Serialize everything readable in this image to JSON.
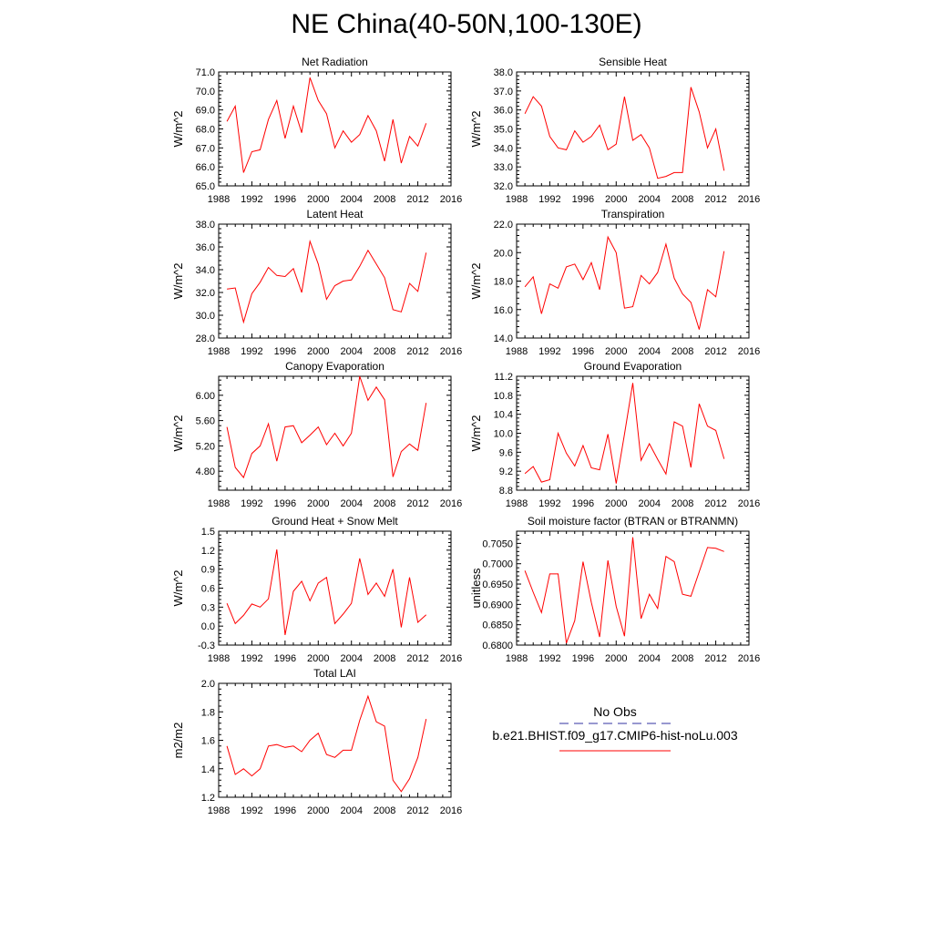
{
  "title": "NE China(40-50N,100-130E)",
  "colors": {
    "series": "#ff0000",
    "obs": "#3030a0",
    "axis": "#000000"
  },
  "legend": {
    "obs_label": "No Obs",
    "model_label": "b.e21.BHIST.f09_g17.CMIP6-hist-noLu.003"
  },
  "chart_data": [
    {
      "type": "line",
      "title": "Net Radiation",
      "ylabel": "W/m^2",
      "xlim": [
        1988,
        2016
      ],
      "ylim": [
        65.0,
        71.0
      ],
      "xticks": [
        "1988",
        "1992",
        "1996",
        "2000",
        "2004",
        "2008",
        "2012",
        "2016"
      ],
      "yticks": [
        "65.0",
        "66.0",
        "67.0",
        "68.0",
        "69.0",
        "70.0",
        "71.0"
      ],
      "ytick_values": [
        65,
        66,
        67,
        68,
        69,
        70,
        71
      ],
      "series": [
        {
          "x": [
            1989,
            1990,
            1991,
            1992,
            1993,
            1994,
            1995,
            1996,
            1997,
            1998,
            1999,
            2000,
            2001,
            2002,
            2003,
            2004,
            2005,
            2006,
            2007,
            2008,
            2009,
            2010,
            2011,
            2012,
            2013
          ],
          "values": [
            68.4,
            69.2,
            65.7,
            66.8,
            66.9,
            68.5,
            69.5,
            67.5,
            69.2,
            67.8,
            70.7,
            69.5,
            68.8,
            67.0,
            67.9,
            67.3,
            67.7,
            68.7,
            67.9,
            66.3,
            68.5,
            66.2,
            67.6,
            67.1,
            68.3
          ]
        }
      ]
    },
    {
      "type": "line",
      "title": "Sensible Heat",
      "ylabel": "W/m^2",
      "xlim": [
        1988,
        2016
      ],
      "ylim": [
        32.0,
        38.0
      ],
      "xticks": [
        "1988",
        "1992",
        "1996",
        "2000",
        "2004",
        "2008",
        "2012",
        "2016"
      ],
      "yticks": [
        "32.0",
        "33.0",
        "34.0",
        "35.0",
        "36.0",
        "37.0",
        "38.0"
      ],
      "ytick_values": [
        32,
        33,
        34,
        35,
        36,
        37,
        38
      ],
      "series": [
        {
          "x": [
            1989,
            1990,
            1991,
            1992,
            1993,
            1994,
            1995,
            1996,
            1997,
            1998,
            1999,
            2000,
            2001,
            2002,
            2003,
            2004,
            2005,
            2006,
            2007,
            2008,
            2009,
            2010,
            2011,
            2012,
            2013
          ],
          "values": [
            35.8,
            36.7,
            36.2,
            34.6,
            34.0,
            33.9,
            34.9,
            34.3,
            34.6,
            35.2,
            33.9,
            34.2,
            36.7,
            34.4,
            34.7,
            34.0,
            32.4,
            32.5,
            32.7,
            32.7,
            37.2,
            35.9,
            34.0,
            35.0,
            32.8
          ]
        }
      ]
    },
    {
      "type": "line",
      "title": "Latent Heat",
      "ylabel": "W/m^2",
      "xlim": [
        1988,
        2016
      ],
      "ylim": [
        28.0,
        38.0
      ],
      "xticks": [
        "1988",
        "1992",
        "1996",
        "2000",
        "2004",
        "2008",
        "2012",
        "2016"
      ],
      "yticks": [
        "28.0",
        "30.0",
        "32.0",
        "34.0",
        "36.0",
        "38.0"
      ],
      "ytick_values": [
        28,
        30,
        32,
        34,
        36,
        38
      ],
      "series": [
        {
          "x": [
            1989,
            1990,
            1991,
            1992,
            1993,
            1994,
            1995,
            1996,
            1997,
            1998,
            1999,
            2000,
            2001,
            2002,
            2003,
            2004,
            2005,
            2006,
            2007,
            2008,
            2009,
            2010,
            2011,
            2012,
            2013
          ],
          "values": [
            32.3,
            32.4,
            29.4,
            31.9,
            32.9,
            34.2,
            33.5,
            33.4,
            34.1,
            32.0,
            36.5,
            34.5,
            31.4,
            32.6,
            33.0,
            33.1,
            34.3,
            35.7,
            34.5,
            33.3,
            30.5,
            30.3,
            32.8,
            32.1,
            35.5
          ]
        }
      ]
    },
    {
      "type": "line",
      "title": "Transpiration",
      "ylabel": "W/m^2",
      "xlim": [
        1988,
        2016
      ],
      "ylim": [
        14.0,
        22.0
      ],
      "xticks": [
        "1988",
        "1992",
        "1996",
        "2000",
        "2004",
        "2008",
        "2012",
        "2016"
      ],
      "yticks": [
        "14.0",
        "16.0",
        "18.0",
        "20.0",
        "22.0"
      ],
      "ytick_values": [
        14,
        16,
        18,
        20,
        22
      ],
      "series": [
        {
          "x": [
            1989,
            1990,
            1991,
            1992,
            1993,
            1994,
            1995,
            1996,
            1997,
            1998,
            1999,
            2000,
            2001,
            2002,
            2003,
            2004,
            2005,
            2006,
            2007,
            2008,
            2009,
            2010,
            2011,
            2012,
            2013
          ],
          "values": [
            17.6,
            18.3,
            15.7,
            17.8,
            17.5,
            19.0,
            19.2,
            18.1,
            19.3,
            17.4,
            21.1,
            20.0,
            16.1,
            16.2,
            18.4,
            17.8,
            18.6,
            20.6,
            18.2,
            17.1,
            16.5,
            14.6,
            17.4,
            16.9,
            20.1
          ]
        }
      ]
    },
    {
      "type": "line",
      "title": "Canopy Evaporation",
      "ylabel": "W/m^2",
      "xlim": [
        1988,
        2016
      ],
      "ylim": [
        4.5,
        6.3
      ],
      "xticks": [
        "1988",
        "1992",
        "1996",
        "2000",
        "2004",
        "2008",
        "2012",
        "2016"
      ],
      "yticks": [
        "4.80",
        "5.20",
        "5.60",
        "6.00"
      ],
      "ytick_values": [
        4.8,
        5.2,
        5.6,
        6.0
      ],
      "series": [
        {
          "x": [
            1989,
            1990,
            1991,
            1992,
            1993,
            1994,
            1995,
            1996,
            1997,
            1998,
            1999,
            2000,
            2001,
            2002,
            2003,
            2004,
            2005,
            2006,
            2007,
            2008,
            2009,
            2010,
            2011,
            2012,
            2013
          ],
          "values": [
            5.5,
            4.86,
            4.7,
            5.08,
            5.2,
            5.55,
            4.96,
            5.5,
            5.52,
            5.25,
            5.37,
            5.5,
            5.22,
            5.4,
            5.2,
            5.4,
            6.3,
            5.92,
            6.13,
            5.93,
            4.71,
            5.11,
            5.23,
            5.13,
            5.88
          ]
        }
      ]
    },
    {
      "type": "line",
      "title": "Ground Evaporation",
      "ylabel": "W/m^2",
      "xlim": [
        1988,
        2016
      ],
      "ylim": [
        8.8,
        11.2
      ],
      "xticks": [
        "1988",
        "1992",
        "1996",
        "2000",
        "2004",
        "2008",
        "2012",
        "2016"
      ],
      "yticks": [
        "8.8",
        "9.2",
        "9.6",
        "10.0",
        "10.4",
        "10.8",
        "11.2"
      ],
      "ytick_values": [
        8.8,
        9.2,
        9.6,
        10.0,
        10.4,
        10.8,
        11.2
      ],
      "series": [
        {
          "x": [
            1989,
            1990,
            1991,
            1992,
            1993,
            1994,
            1995,
            1996,
            1997,
            1998,
            1999,
            2000,
            2001,
            2002,
            2003,
            2004,
            2005,
            2006,
            2007,
            2008,
            2009,
            2010,
            2011,
            2012,
            2013
          ],
          "values": [
            9.15,
            9.3,
            8.97,
            9.02,
            10.0,
            9.58,
            9.31,
            9.74,
            9.27,
            9.23,
            9.98,
            8.94,
            9.98,
            11.06,
            9.43,
            9.78,
            9.45,
            9.14,
            10.24,
            10.15,
            9.28,
            10.62,
            10.15,
            10.06,
            9.46
          ]
        }
      ]
    },
    {
      "type": "line",
      "title": "Ground Heat + Snow Melt",
      "ylabel": "W/m^2",
      "xlim": [
        1988,
        2016
      ],
      "ylim": [
        -0.3,
        1.5
      ],
      "xticks": [
        "1988",
        "1992",
        "1996",
        "2000",
        "2004",
        "2008",
        "2012",
        "2016"
      ],
      "yticks": [
        "-0.3",
        "0.0",
        "0.3",
        "0.6",
        "0.9",
        "1.2",
        "1.5"
      ],
      "ytick_values": [
        -0.3,
        0.0,
        0.3,
        0.6,
        0.9,
        1.2,
        1.5
      ],
      "series": [
        {
          "x": [
            1989,
            1990,
            1991,
            1992,
            1993,
            1994,
            1995,
            1996,
            1997,
            1998,
            1999,
            2000,
            2001,
            2002,
            2003,
            2004,
            2005,
            2006,
            2007,
            2008,
            2009,
            2010,
            2011,
            2012,
            2013
          ],
          "values": [
            0.36,
            0.04,
            0.17,
            0.35,
            0.3,
            0.43,
            1.21,
            -0.14,
            0.55,
            0.71,
            0.4,
            0.68,
            0.77,
            0.04,
            0.19,
            0.36,
            1.07,
            0.5,
            0.68,
            0.47,
            0.9,
            -0.02,
            0.77,
            0.06,
            0.18
          ]
        }
      ]
    },
    {
      "type": "line",
      "title": "Soil moisture factor (BTRAN or BTRANMN)",
      "ylabel": "unitless",
      "xlim": [
        1988,
        2016
      ],
      "ylim": [
        0.68,
        0.708
      ],
      "xticks": [
        "1988",
        "1992",
        "1996",
        "2000",
        "2004",
        "2008",
        "2012",
        "2016"
      ],
      "yticks": [
        "0.6800",
        "0.6850",
        "0.6900",
        "0.6950",
        "0.7000",
        "0.7050"
      ],
      "ytick_values": [
        0.68,
        0.685,
        0.69,
        0.695,
        0.7,
        0.705
      ],
      "series": [
        {
          "x": [
            1989,
            1990,
            1991,
            1992,
            1993,
            1994,
            1995,
            1996,
            1997,
            1998,
            1999,
            2000,
            2001,
            2002,
            2003,
            2004,
            2005,
            2006,
            2007,
            2008,
            2009,
            2010,
            2011,
            2012,
            2013
          ],
          "values": [
            0.6983,
            0.693,
            0.688,
            0.6975,
            0.6975,
            0.6805,
            0.686,
            0.7005,
            0.6905,
            0.682,
            0.7008,
            0.6895,
            0.6822,
            0.7065,
            0.6865,
            0.6925,
            0.689,
            0.7018,
            0.7005,
            0.6925,
            0.692,
            0.698,
            0.704,
            0.7038,
            0.703
          ]
        }
      ]
    },
    {
      "type": "line",
      "title": "Total LAI",
      "ylabel": "m2/m2",
      "xlim": [
        1988,
        2016
      ],
      "ylim": [
        1.2,
        2.0
      ],
      "xticks": [
        "1988",
        "1992",
        "1996",
        "2000",
        "2004",
        "2008",
        "2012",
        "2016"
      ],
      "yticks": [
        "1.2",
        "1.4",
        "1.6",
        "1.8",
        "2.0"
      ],
      "ytick_values": [
        1.2,
        1.4,
        1.6,
        1.8,
        2.0
      ],
      "series": [
        {
          "x": [
            1989,
            1990,
            1991,
            1992,
            1993,
            1994,
            1995,
            1996,
            1997,
            1998,
            1999,
            2000,
            2001,
            2002,
            2003,
            2004,
            2005,
            2006,
            2007,
            2008,
            2009,
            2010,
            2011,
            2012,
            2013
          ],
          "values": [
            1.56,
            1.36,
            1.4,
            1.35,
            1.4,
            1.56,
            1.57,
            1.55,
            1.56,
            1.52,
            1.6,
            1.65,
            1.5,
            1.48,
            1.53,
            1.53,
            1.74,
            1.91,
            1.73,
            1.7,
            1.32,
            1.24,
            1.33,
            1.48,
            1.75
          ]
        }
      ]
    }
  ]
}
